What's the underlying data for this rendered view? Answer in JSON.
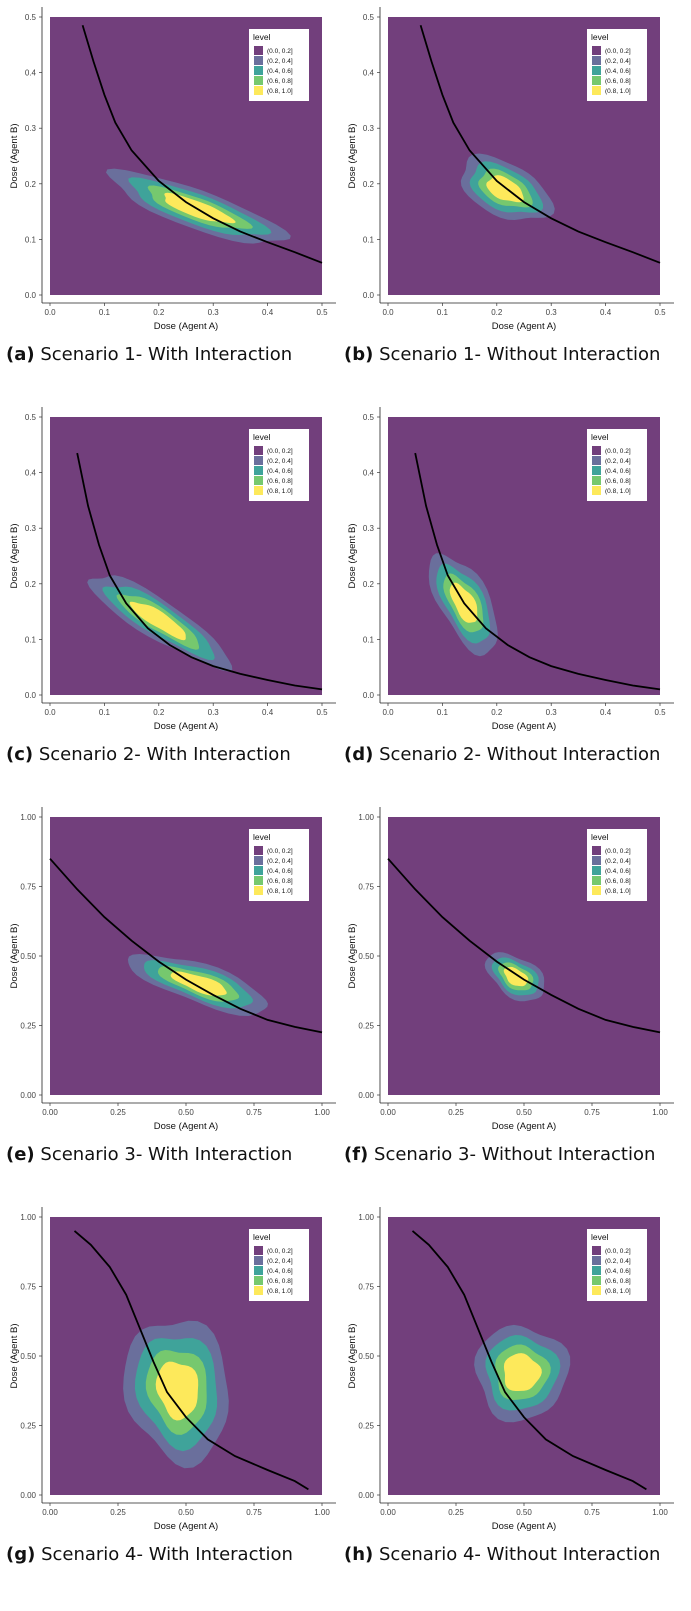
{
  "colors": {
    "level_fills": [
      "#723f7c",
      "#6a6f9c",
      "#3fa39a",
      "#76c86e",
      "#fde95b"
    ],
    "curve": "#000000"
  },
  "legend": {
    "title": "level",
    "items": [
      "(0.0, 0.2]",
      "(0.2, 0.4]",
      "(0.4, 0.6]",
      "(0.6, 0.8]",
      "(0.8, 1.0]"
    ],
    "placement": "top-right"
  },
  "axes": {
    "xlabel": "Dose (Agent A)",
    "ylabel": "Dose (Agent B)"
  },
  "chart_data": [
    {
      "type": "heatmap",
      "caption_letter": "(a)",
      "caption_text": " Scenario 1- With Interaction",
      "xlim": [
        0,
        0.5
      ],
      "ylim": [
        0,
        0.5
      ],
      "xticks": [
        "0.0",
        "0.1",
        "0.2",
        "0.3",
        "0.4",
        "0.5"
      ],
      "yticks": [
        "0.0",
        "0.1",
        "0.2",
        "0.3",
        "0.4",
        "0.5"
      ],
      "curve": [
        [
          0.06,
          0.485
        ],
        [
          0.08,
          0.42
        ],
        [
          0.1,
          0.36
        ],
        [
          0.12,
          0.31
        ],
        [
          0.15,
          0.26
        ],
        [
          0.2,
          0.205
        ],
        [
          0.25,
          0.167
        ],
        [
          0.3,
          0.138
        ],
        [
          0.35,
          0.114
        ],
        [
          0.4,
          0.095
        ],
        [
          0.45,
          0.077
        ],
        [
          0.5,
          0.058
        ]
      ],
      "blob": {
        "cx": 0.27,
        "cy": 0.155,
        "rx": 0.17,
        "ry": 0.035,
        "angle": -0.34
      }
    },
    {
      "type": "heatmap",
      "caption_letter": "(b)",
      "caption_text": " Scenario 1- Without Interaction",
      "xlim": [
        0,
        0.5
      ],
      "ylim": [
        0,
        0.5
      ],
      "xticks": [
        "0.0",
        "0.1",
        "0.2",
        "0.3",
        "0.4",
        "0.5"
      ],
      "yticks": [
        "0.0",
        "0.1",
        "0.2",
        "0.3",
        "0.4",
        "0.5"
      ],
      "curve": [
        [
          0.06,
          0.485
        ],
        [
          0.08,
          0.42
        ],
        [
          0.1,
          0.36
        ],
        [
          0.12,
          0.31
        ],
        [
          0.15,
          0.26
        ],
        [
          0.2,
          0.205
        ],
        [
          0.25,
          0.167
        ],
        [
          0.3,
          0.138
        ],
        [
          0.35,
          0.114
        ],
        [
          0.4,
          0.095
        ],
        [
          0.45,
          0.077
        ],
        [
          0.5,
          0.058
        ]
      ],
      "blob": {
        "cx": 0.215,
        "cy": 0.19,
        "rx": 0.09,
        "ry": 0.048,
        "angle": -0.45
      }
    },
    {
      "type": "heatmap",
      "caption_letter": "(c)",
      "caption_text": " Scenario 2- With Interaction",
      "xlim": [
        0,
        0.5
      ],
      "ylim": [
        0,
        0.5
      ],
      "xticks": [
        "0.0",
        "0.1",
        "0.2",
        "0.3",
        "0.4",
        "0.5"
      ],
      "yticks": [
        "0.0",
        "0.1",
        "0.2",
        "0.3",
        "0.4",
        "0.5"
      ],
      "curve": [
        [
          0.05,
          0.435
        ],
        [
          0.07,
          0.34
        ],
        [
          0.09,
          0.27
        ],
        [
          0.11,
          0.215
        ],
        [
          0.14,
          0.165
        ],
        [
          0.18,
          0.12
        ],
        [
          0.22,
          0.09
        ],
        [
          0.26,
          0.068
        ],
        [
          0.3,
          0.052
        ],
        [
          0.35,
          0.038
        ],
        [
          0.4,
          0.027
        ],
        [
          0.45,
          0.017
        ],
        [
          0.5,
          0.01
        ]
      ],
      "blob": {
        "cx": 0.2,
        "cy": 0.135,
        "rx": 0.15,
        "ry": 0.035,
        "angle": -0.55
      }
    },
    {
      "type": "heatmap",
      "caption_letter": "(d)",
      "caption_text": " Scenario 2- Without Interaction",
      "xlim": [
        0,
        0.5
      ],
      "ylim": [
        0,
        0.5
      ],
      "xticks": [
        "0.0",
        "0.1",
        "0.2",
        "0.3",
        "0.4",
        "0.5"
      ],
      "yticks": [
        "0.0",
        "0.1",
        "0.2",
        "0.3",
        "0.4",
        "0.5"
      ],
      "curve": [
        [
          0.05,
          0.435
        ],
        [
          0.07,
          0.34
        ],
        [
          0.09,
          0.27
        ],
        [
          0.11,
          0.215
        ],
        [
          0.14,
          0.165
        ],
        [
          0.18,
          0.12
        ],
        [
          0.22,
          0.09
        ],
        [
          0.26,
          0.068
        ],
        [
          0.3,
          0.052
        ],
        [
          0.35,
          0.038
        ],
        [
          0.4,
          0.027
        ],
        [
          0.45,
          0.017
        ],
        [
          0.5,
          0.01
        ]
      ],
      "blob": {
        "cx": 0.14,
        "cy": 0.165,
        "rx": 0.1,
        "ry": 0.045,
        "angle": -1.05
      }
    },
    {
      "type": "heatmap",
      "caption_letter": "(e)",
      "caption_text": " Scenario 3- With Interaction",
      "xlim": [
        0,
        1
      ],
      "ylim": [
        0,
        1
      ],
      "xticks": [
        "0.00",
        "0.25",
        "0.50",
        "0.75",
        "1.00"
      ],
      "yticks": [
        "0.00",
        "0.25",
        "0.50",
        "0.75",
        "1.00"
      ],
      "curve": [
        [
          0,
          0.85
        ],
        [
          0.1,
          0.74
        ],
        [
          0.2,
          0.64
        ],
        [
          0.3,
          0.555
        ],
        [
          0.4,
          0.48
        ],
        [
          0.5,
          0.415
        ],
        [
          0.6,
          0.36
        ],
        [
          0.7,
          0.31
        ],
        [
          0.8,
          0.27
        ],
        [
          0.9,
          0.245
        ],
        [
          1,
          0.225
        ]
      ],
      "blob": {
        "cx": 0.55,
        "cy": 0.4,
        "rx": 0.27,
        "ry": 0.07,
        "angle": -0.32
      }
    },
    {
      "type": "heatmap",
      "caption_letter": "(f)",
      "caption_text": " Scenario 3- Without Interaction",
      "xlim": [
        0,
        1
      ],
      "ylim": [
        0,
        1
      ],
      "xticks": [
        "0.00",
        "0.25",
        "0.50",
        "0.75",
        "1.00"
      ],
      "yticks": [
        "0.00",
        "0.25",
        "0.50",
        "0.75",
        "1.00"
      ],
      "curve": [
        [
          0,
          0.85
        ],
        [
          0.1,
          0.74
        ],
        [
          0.2,
          0.64
        ],
        [
          0.3,
          0.555
        ],
        [
          0.4,
          0.48
        ],
        [
          0.5,
          0.415
        ],
        [
          0.6,
          0.36
        ],
        [
          0.7,
          0.31
        ],
        [
          0.8,
          0.27
        ],
        [
          0.9,
          0.245
        ],
        [
          1,
          0.225
        ]
      ],
      "blob": {
        "cx": 0.47,
        "cy": 0.425,
        "rx": 0.12,
        "ry": 0.07,
        "angle": -0.55
      }
    },
    {
      "type": "heatmap",
      "caption_letter": "(g)",
      "caption_text": " Scenario 4- With Interaction",
      "xlim": [
        0,
        1
      ],
      "ylim": [
        0,
        1
      ],
      "xticks": [
        "0.00",
        "0.25",
        "0.50",
        "0.75",
        "1.00"
      ],
      "yticks": [
        "0.00",
        "0.25",
        "0.50",
        "0.75",
        "1.00"
      ],
      "curve": [
        [
          0.09,
          0.95
        ],
        [
          0.15,
          0.9
        ],
        [
          0.22,
          0.82
        ],
        [
          0.28,
          0.72
        ],
        [
          0.33,
          0.6
        ],
        [
          0.38,
          0.48
        ],
        [
          0.43,
          0.37
        ],
        [
          0.5,
          0.28
        ],
        [
          0.58,
          0.2
        ],
        [
          0.68,
          0.14
        ],
        [
          0.8,
          0.09
        ],
        [
          0.9,
          0.05
        ],
        [
          0.95,
          0.02
        ]
      ],
      "blob": {
        "cx": 0.47,
        "cy": 0.38,
        "rx": 0.19,
        "ry": 0.26,
        "angle": 0.2
      }
    },
    {
      "type": "heatmap",
      "caption_letter": "(h)",
      "caption_text": " Scenario 4- Without Interaction",
      "xlim": [
        0,
        1
      ],
      "ylim": [
        0,
        1
      ],
      "xticks": [
        "0.00",
        "0.25",
        "0.50",
        "0.75",
        "1.00"
      ],
      "yticks": [
        "0.00",
        "0.25",
        "0.50",
        "0.75",
        "1.00"
      ],
      "curve": [
        [
          0.09,
          0.95
        ],
        [
          0.15,
          0.9
        ],
        [
          0.22,
          0.82
        ],
        [
          0.28,
          0.72
        ],
        [
          0.33,
          0.6
        ],
        [
          0.38,
          0.48
        ],
        [
          0.43,
          0.37
        ],
        [
          0.5,
          0.28
        ],
        [
          0.58,
          0.2
        ],
        [
          0.68,
          0.14
        ],
        [
          0.8,
          0.09
        ],
        [
          0.9,
          0.05
        ],
        [
          0.95,
          0.02
        ]
      ],
      "blob": {
        "cx": 0.49,
        "cy": 0.44,
        "rx": 0.17,
        "ry": 0.17,
        "angle": 0
      }
    }
  ]
}
